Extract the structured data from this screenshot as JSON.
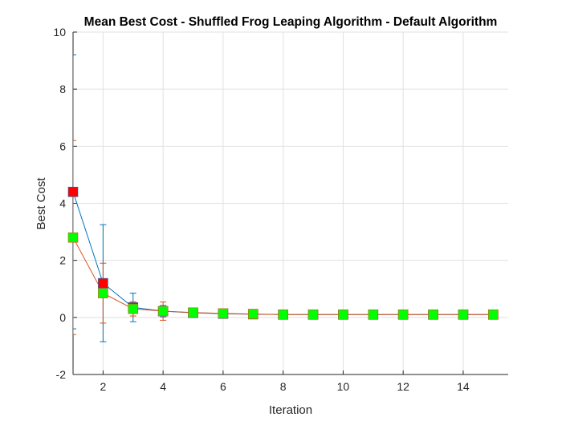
{
  "chart_data": {
    "type": "line",
    "title": "Mean Best Cost - Shuffled Frog Leaping Algorithm - Default Algorithm",
    "xlabel": "Iteration",
    "ylabel": "Best Cost",
    "xlim": [
      1,
      15.5
    ],
    "ylim": [
      -2,
      10
    ],
    "xticks": [
      2,
      4,
      6,
      8,
      10,
      12,
      14
    ],
    "yticks": [
      -2,
      0,
      2,
      4,
      6,
      8,
      10
    ],
    "grid": true,
    "series": [
      {
        "color": "#0072BD",
        "marker_color": "#FF0000",
        "x": [
          1,
          2,
          3,
          4,
          5,
          6,
          7,
          8,
          9,
          10,
          11,
          12,
          13,
          14,
          15
        ],
        "y": [
          4.4,
          1.2,
          0.35,
          0.22,
          0.16,
          0.13,
          0.11,
          0.1,
          0.1,
          0.1,
          0.1,
          0.1,
          0.1,
          0.1,
          0.1
        ],
        "err": [
          4.8,
          2.05,
          0.5,
          0.2,
          0.08,
          0.05,
          0.03,
          0.02,
          0.01,
          0.01,
          0.01,
          0.01,
          0.01,
          0.01,
          0.01
        ]
      },
      {
        "color": "#D95319",
        "marker_color": "#00FF00",
        "x": [
          1,
          2,
          3,
          4,
          5,
          6,
          7,
          8,
          9,
          10,
          11,
          12,
          13,
          14,
          15
        ],
        "y": [
          2.8,
          0.85,
          0.3,
          0.22,
          0.17,
          0.14,
          0.12,
          0.1,
          0.1,
          0.1,
          0.1,
          0.1,
          0.1,
          0.1,
          0.1
        ],
        "err": [
          3.4,
          1.05,
          0.25,
          0.32,
          0.1,
          0.06,
          0.04,
          0.02,
          0.01,
          0.01,
          0.01,
          0.01,
          0.01,
          0.01,
          0.01
        ]
      }
    ]
  }
}
